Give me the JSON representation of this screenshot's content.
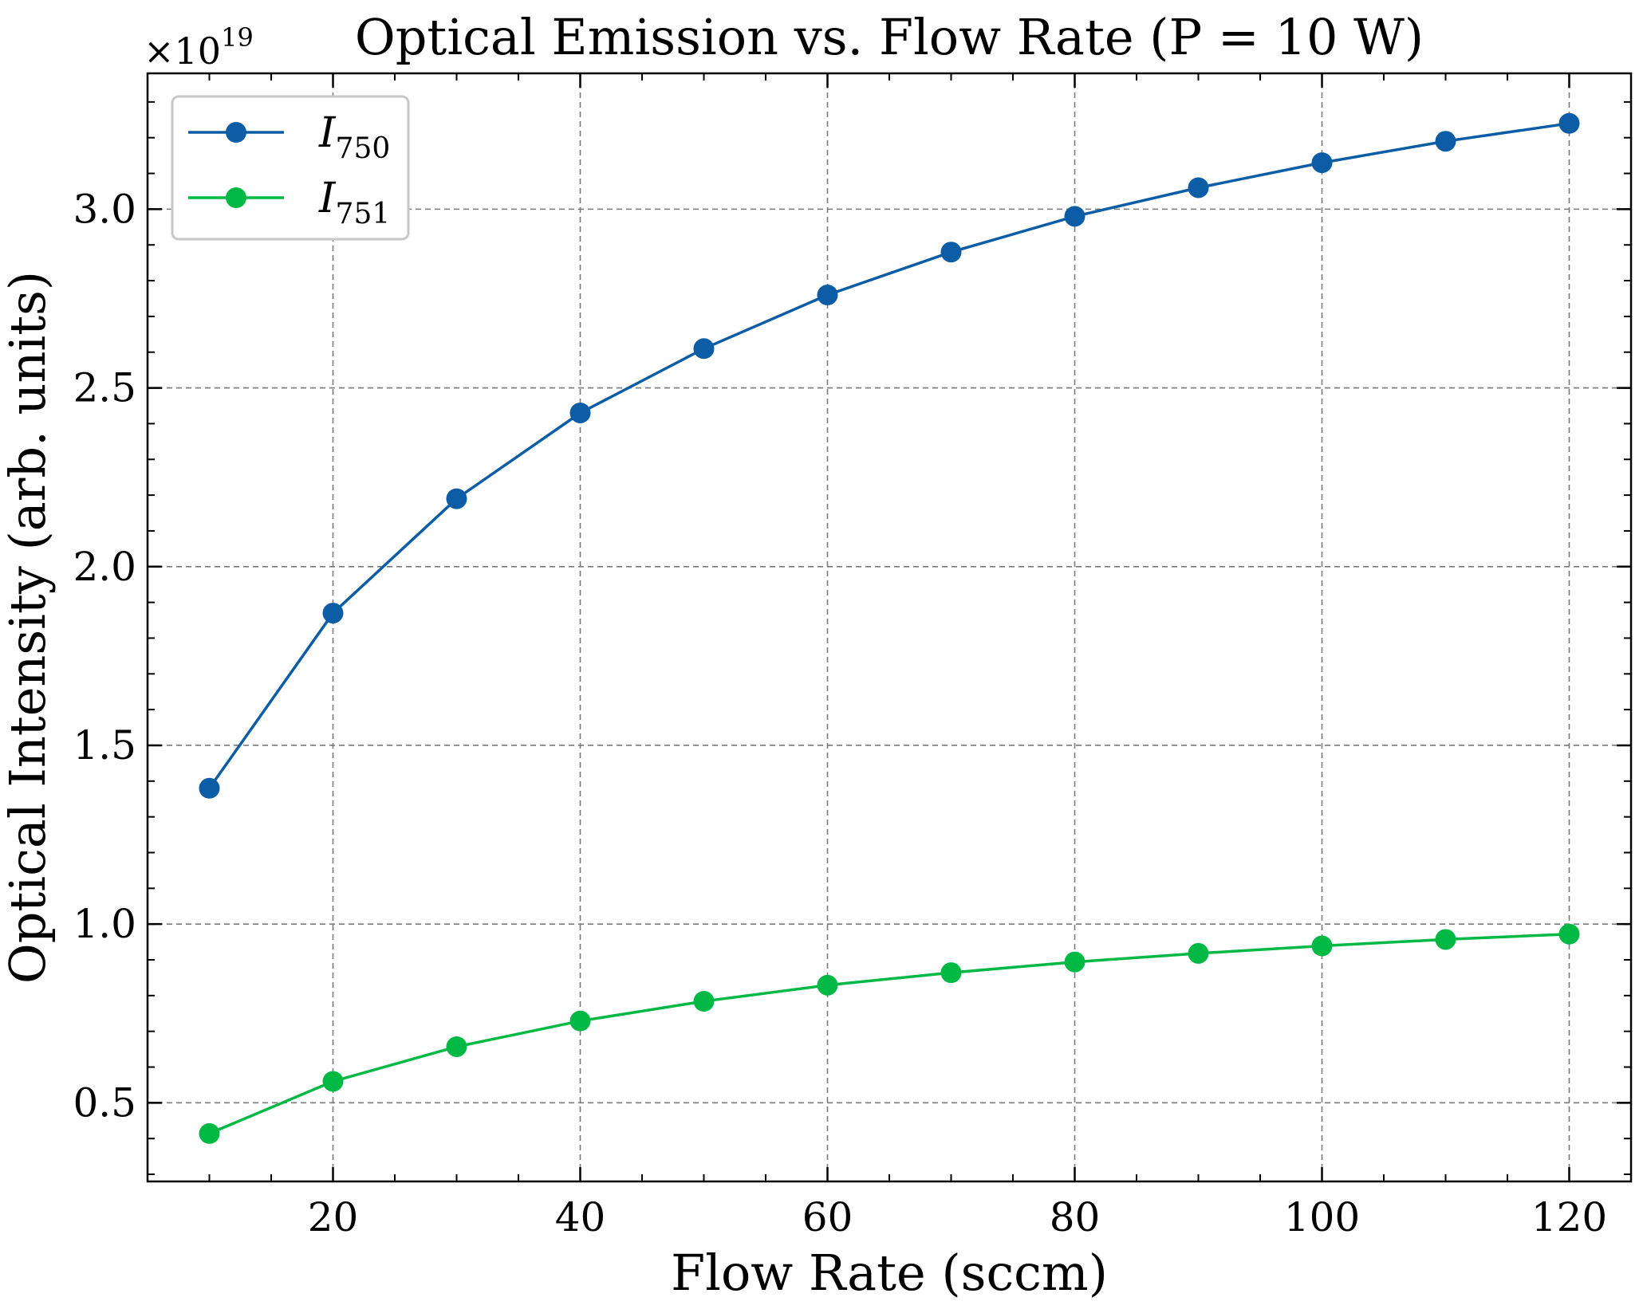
{
  "chart_data": {
    "type": "line",
    "title": "Optical Emission vs. Flow Rate (P = 10 W)",
    "xlabel": "Flow Rate (sccm)",
    "ylabel": "Optical Intensity (arb. units)",
    "y_multiplier_label": "×10",
    "y_multiplier_exponent": "19",
    "xlim": [
      5,
      125
    ],
    "ylim": [
      0.28,
      3.38
    ],
    "x_ticks": [
      20,
      40,
      60,
      80,
      100,
      120
    ],
    "y_ticks": [
      0.5,
      1.0,
      1.5,
      2.0,
      2.5,
      3.0
    ],
    "x_tick_labels": [
      "20",
      "40",
      "60",
      "80",
      "100",
      "120"
    ],
    "y_tick_labels": [
      "0.5",
      "1.0",
      "1.5",
      "2.0",
      "2.5",
      "3.0"
    ],
    "grid": true,
    "legend_position": "top-left",
    "x": [
      10,
      20,
      30,
      40,
      50,
      60,
      70,
      80,
      90,
      100,
      110,
      120
    ],
    "series": [
      {
        "name": "I",
        "name_subscript": "750",
        "color": "#0C5DA5",
        "values": [
          1.38,
          1.87,
          2.19,
          2.43,
          2.61,
          2.76,
          2.88,
          2.98,
          3.06,
          3.13,
          3.19,
          3.24
        ]
      },
      {
        "name": "I",
        "name_subscript": "751",
        "color": "#00B945",
        "values": [
          0.414,
          0.56,
          0.657,
          0.729,
          0.784,
          0.829,
          0.864,
          0.894,
          0.918,
          0.939,
          0.957,
          0.972
        ]
      }
    ]
  }
}
